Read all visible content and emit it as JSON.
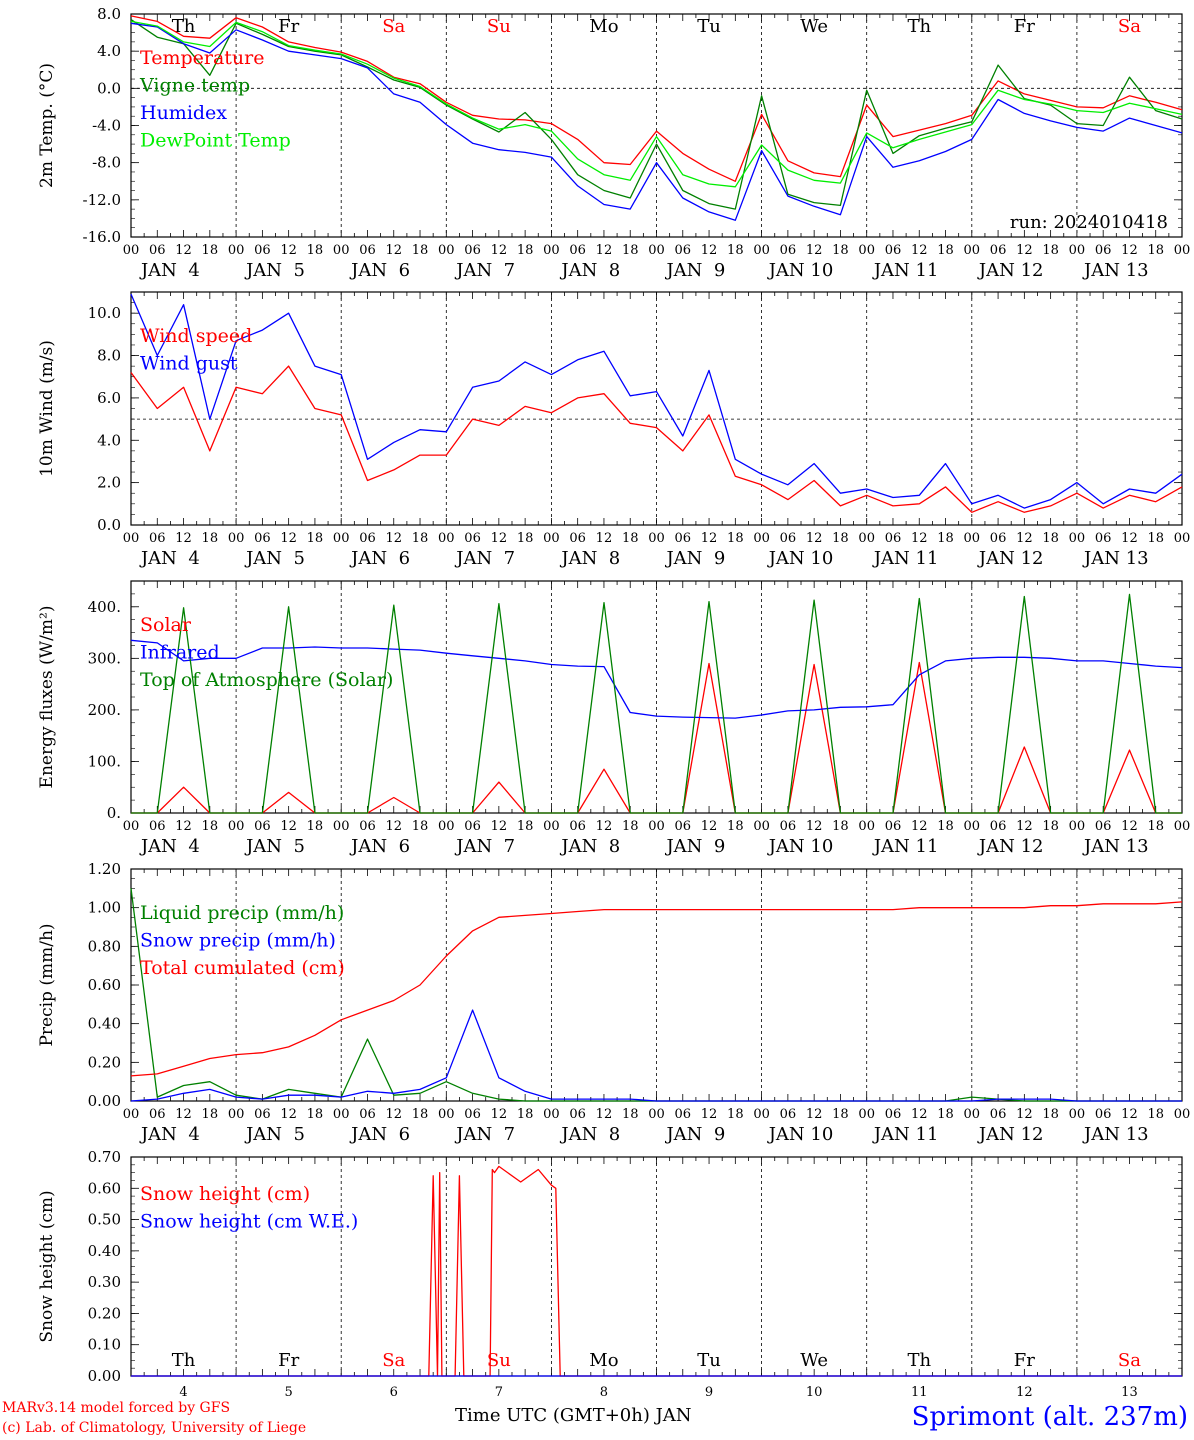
{
  "footer": {
    "model": "MARv3.14 model forced by GFS",
    "credit": "(c) Lab. of Climatology, University of Liege",
    "xlabel": "Time UTC (GMT+0h) JAN",
    "station": "Sprimont (alt. 237m)"
  },
  "colors": {
    "red": "#ff0000",
    "green": "#008000",
    "blue": "#0000ff",
    "lightgreen": "#00ee00"
  },
  "days": [
    "Th",
    "Fr",
    "Sa",
    "Su",
    "Mo",
    "Tu",
    "We",
    "Th",
    "Fr",
    "Sa"
  ],
  "weekend_days": [
    "Sa",
    "Su"
  ],
  "date_labels": [
    "JAN  4",
    "JAN  5",
    "JAN  6",
    "JAN  7",
    "JAN  8",
    "JAN  9",
    "JAN 10",
    "JAN 11",
    "JAN 12",
    "JAN 13"
  ],
  "day_numbers": [
    "4",
    "5",
    "6",
    "7",
    "8",
    "9",
    "10",
    "11",
    "12",
    "13"
  ],
  "hour_ticks": [
    "00",
    "06",
    "12",
    "18"
  ],
  "chart_data": [
    {
      "type": "line",
      "ylabel": "2m Temp. (°C)",
      "ylim": [
        -16,
        8
      ],
      "yticks": [
        "8.0",
        "4.0",
        "0.0",
        "-4.0",
        "-8.0",
        "-12.0",
        "-16.0"
      ],
      "ytick_values": [
        8,
        4,
        0,
        -4,
        -8,
        -12,
        -16
      ],
      "dashed_y": 0,
      "annotation": "run: 2024010418",
      "x_hours": [
        0,
        6,
        12,
        18,
        24,
        30,
        36,
        42,
        48,
        54,
        60,
        66,
        72,
        78,
        84,
        90,
        96,
        102,
        108,
        114,
        120,
        126,
        132,
        138,
        144,
        150,
        156,
        162,
        168,
        174,
        180,
        186,
        192,
        198,
        204,
        210,
        216,
        222,
        228,
        234,
        240
      ],
      "series": [
        {
          "name": "Temperature",
          "color": "red",
          "values": [
            7.8,
            7.2,
            5.6,
            5.4,
            7.6,
            6.6,
            5,
            4.4,
            3.9,
            2.9,
            1.2,
            0.5,
            -1.5,
            -2.9,
            -3.3,
            -3.4,
            -3.8,
            -5.5,
            -8,
            -8.2,
            -4.6,
            -7,
            -8.7,
            -10,
            -2.8,
            -7.8,
            -9.1,
            -9.5,
            -1.8,
            -5.2,
            -4.5,
            -3.8,
            -2.9,
            0.8,
            -0.6,
            -1.3,
            -2,
            -2.1,
            -0.8,
            -1.5,
            -2.3
          ]
        },
        {
          "name": "Vigne temp",
          "color": "green",
          "values": [
            7.4,
            5.5,
            4.8,
            1.4,
            7,
            5.8,
            4.5,
            4,
            3.6,
            2.3,
            0.9,
            0.1,
            -1.8,
            -3.3,
            -4.7,
            -2.6,
            -5.5,
            -9.3,
            -11,
            -11.8,
            -6,
            -11,
            -12.4,
            -13,
            -0.8,
            -11.4,
            -12.3,
            -12.6,
            -0.2,
            -7,
            -5.1,
            -4.3,
            -3.6,
            2.5,
            -1.1,
            -1.8,
            -3.8,
            -4,
            1.2,
            -2.4,
            -3.3
          ]
        },
        {
          "name": "Humidex",
          "color": "blue",
          "values": [
            7,
            6.6,
            4.8,
            3.8,
            6.3,
            5.2,
            4,
            3.6,
            3.2,
            2.2,
            -0.6,
            -1.5,
            -3.9,
            -5.9,
            -6.6,
            -6.9,
            -7.4,
            -10.5,
            -12.5,
            -13,
            -8,
            -11.8,
            -13.3,
            -14.2,
            -6.7,
            -11.6,
            -12.7,
            -13.6,
            -5.2,
            -8.5,
            -7.8,
            -6.8,
            -5.5,
            -1.2,
            -2.7,
            -3.5,
            -4.2,
            -4.6,
            -3.2,
            -4,
            -4.8
          ]
        },
        {
          "name": "DewPoint Temp",
          "color": "lightgreen",
          "values": [
            7.2,
            6.7,
            5,
            4.5,
            7.1,
            6.1,
            4.6,
            4.1,
            3.7,
            2.6,
            1.1,
            0.2,
            -1.7,
            -3.2,
            -4.4,
            -3.9,
            -4.6,
            -7.6,
            -9.3,
            -9.9,
            -5.2,
            -9.3,
            -10.3,
            -10.6,
            -6.1,
            -8.8,
            -9.9,
            -10.2,
            -4.8,
            -6.4,
            -5.5,
            -4.7,
            -3.9,
            -0.2,
            -1.2,
            -1.7,
            -2.4,
            -2.6,
            -1.6,
            -2.2,
            -2.8
          ]
        }
      ]
    },
    {
      "type": "line",
      "ylabel": "10m Wind (m/s)",
      "ylim": [
        0,
        11
      ],
      "yticks": [
        "10.0",
        "8.0",
        "6.0",
        "4.0",
        "2.0",
        "0.0"
      ],
      "ytick_values": [
        10,
        8,
        6,
        4,
        2,
        0
      ],
      "dashed_y": 5,
      "x_hours": [
        0,
        6,
        12,
        18,
        24,
        30,
        36,
        42,
        48,
        54,
        60,
        66,
        72,
        78,
        84,
        90,
        96,
        102,
        108,
        114,
        120,
        126,
        132,
        138,
        144,
        150,
        156,
        162,
        168,
        174,
        180,
        186,
        192,
        198,
        204,
        210,
        216,
        222,
        228,
        234,
        240
      ],
      "series": [
        {
          "name": "Wind speed",
          "color": "red",
          "values": [
            7.2,
            5.5,
            6.5,
            3.5,
            6.5,
            6.2,
            7.5,
            5.5,
            5.2,
            2.1,
            2.6,
            3.3,
            3.3,
            5,
            4.7,
            5.6,
            5.3,
            6,
            6.2,
            4.8,
            4.6,
            3.5,
            5.2,
            2.3,
            1.9,
            1.2,
            2.1,
            0.9,
            1.4,
            0.9,
            1,
            1.8,
            0.6,
            1.1,
            0.6,
            0.9,
            1.5,
            0.8,
            1.4,
            1.1,
            1.8
          ]
        },
        {
          "name": "Wind gust",
          "color": "blue",
          "values": [
            10.9,
            8,
            10.4,
            5,
            8.7,
            9.2,
            10,
            7.5,
            7.1,
            3.1,
            3.9,
            4.5,
            4.4,
            6.5,
            6.8,
            7.7,
            7.1,
            7.8,
            8.2,
            6.1,
            6.3,
            4.2,
            7.3,
            3.1,
            2.4,
            1.9,
            2.9,
            1.5,
            1.7,
            1.3,
            1.4,
            2.9,
            1,
            1.4,
            0.8,
            1.2,
            2,
            1,
            1.7,
            1.5,
            2.4
          ]
        }
      ]
    },
    {
      "type": "line",
      "ylabel": "Energy fluxes (W/m²)",
      "ylim": [
        0,
        450
      ],
      "yticks": [
        "400.",
        "300.",
        "200.",
        "100.",
        "0."
      ],
      "ytick_values": [
        400,
        300,
        200,
        100,
        0
      ],
      "x_hours": [
        0,
        6,
        12,
        18,
        24,
        30,
        36,
        42,
        48,
        54,
        60,
        66,
        72,
        78,
        84,
        90,
        96,
        102,
        108,
        114,
        120,
        126,
        132,
        138,
        144,
        150,
        156,
        162,
        168,
        174,
        180,
        186,
        192,
        198,
        204,
        210,
        216,
        222,
        228,
        234,
        240
      ],
      "series": [
        {
          "name": "Solar",
          "color": "red",
          "values": [
            0,
            0,
            50,
            0,
            0,
            0,
            40,
            0,
            0,
            0,
            30,
            0,
            0,
            0,
            60,
            0,
            0,
            0,
            85,
            0,
            0,
            0,
            290,
            0,
            0,
            0,
            288,
            0,
            0,
            0,
            292,
            0,
            0,
            0,
            128,
            0,
            0,
            0,
            122,
            0,
            0
          ]
        },
        {
          "name": "Infrared",
          "color": "blue",
          "values": [
            335,
            330,
            295,
            300,
            300,
            320,
            320,
            322,
            320,
            320,
            318,
            316,
            310,
            305,
            300,
            295,
            288,
            285,
            284,
            195,
            188,
            186,
            185,
            184,
            190,
            198,
            200,
            205,
            206,
            210,
            268,
            295,
            300,
            302,
            302,
            300,
            295,
            295,
            290,
            285,
            282
          ]
        },
        {
          "name": "Top of Atmosphere (Solar)",
          "color": "green",
          "values": [
            0,
            0,
            398,
            0,
            0,
            0,
            400,
            0,
            0,
            0,
            403,
            0,
            0,
            0,
            406,
            0,
            0,
            0,
            408,
            0,
            0,
            0,
            410,
            0,
            0,
            0,
            413,
            0,
            0,
            0,
            416,
            0,
            0,
            0,
            420,
            0,
            0,
            0,
            424,
            0,
            0
          ]
        }
      ]
    },
    {
      "type": "line",
      "ylabel": "Precip (mm/h)",
      "ylim": [
        0,
        1.2
      ],
      "yticks": [
        "1.20",
        "1.00",
        "0.80",
        "0.60",
        "0.40",
        "0.20",
        "0.00"
      ],
      "ytick_values": [
        1.2,
        1,
        0.8,
        0.6,
        0.4,
        0.2,
        0
      ],
      "x_hours": [
        0,
        6,
        12,
        18,
        24,
        30,
        36,
        42,
        48,
        54,
        60,
        66,
        72,
        78,
        84,
        90,
        96,
        102,
        108,
        114,
        120,
        126,
        132,
        138,
        144,
        150,
        156,
        162,
        168,
        174,
        180,
        186,
        192,
        198,
        204,
        210,
        216,
        222,
        228,
        234,
        240
      ],
      "series": [
        {
          "name": "Liquid precip (mm/h)",
          "color": "green",
          "values": [
            1.1,
            0.02,
            0.08,
            0.1,
            0.03,
            0.01,
            0.06,
            0.04,
            0.02,
            0.32,
            0.03,
            0.04,
            0.1,
            0.04,
            0.01,
            0,
            0,
            0,
            0,
            0,
            0,
            0,
            0,
            0,
            0,
            0,
            0,
            0,
            0,
            0,
            0,
            0,
            0.02,
            0.01,
            0,
            0,
            0,
            0,
            0,
            0,
            0
          ]
        },
        {
          "name": "Snow precip (mm/h)",
          "color": "blue",
          "values": [
            0,
            0.01,
            0.04,
            0.06,
            0.02,
            0.01,
            0.03,
            0.03,
            0.02,
            0.05,
            0.04,
            0.06,
            0.12,
            0.47,
            0.12,
            0.05,
            0.01,
            0.01,
            0.01,
            0.01,
            0,
            0,
            0,
            0,
            0,
            0,
            0,
            0,
            0,
            0,
            0,
            0,
            0,
            0.01,
            0.01,
            0.01,
            0,
            0,
            0,
            0,
            0
          ]
        },
        {
          "name": "Total cumulated (cm)",
          "color": "red",
          "values": [
            0.13,
            0.14,
            0.18,
            0.22,
            0.24,
            0.25,
            0.28,
            0.34,
            0.42,
            0.47,
            0.52,
            0.6,
            0.75,
            0.88,
            0.95,
            0.96,
            0.97,
            0.98,
            0.99,
            0.99,
            0.99,
            0.99,
            0.99,
            0.99,
            0.99,
            0.99,
            0.99,
            0.99,
            0.99,
            0.99,
            1,
            1,
            1,
            1,
            1,
            1.01,
            1.01,
            1.02,
            1.02,
            1.02,
            1.03
          ]
        }
      ]
    },
    {
      "type": "line",
      "ylabel": "Snow height (cm)",
      "ylim": [
        0,
        0.7
      ],
      "yticks": [
        "0.70",
        "0.60",
        "0.50",
        "0.40",
        "0.30",
        "0.20",
        "0.10",
        "0.00"
      ],
      "ytick_values": [
        0.7,
        0.6,
        0.5,
        0.4,
        0.3,
        0.2,
        0.1,
        0
      ],
      "x_hours": [
        0,
        68,
        69,
        70,
        70.5,
        71,
        72,
        74,
        75,
        76,
        82,
        82.5,
        83,
        84,
        89,
        93,
        96,
        97,
        98,
        240
      ],
      "series": [
        {
          "name": "Snow height (cm)",
          "color": "red",
          "values": [
            0,
            0,
            0.64,
            0,
            0.65,
            0,
            0,
            0,
            0.64,
            0,
            0,
            0.66,
            0.65,
            0.67,
            0.62,
            0.66,
            0.61,
            0.6,
            0,
            0
          ]
        },
        {
          "name": "Snow height (cm W.E.)",
          "color": "blue",
          "values": [
            0,
            0,
            0,
            0,
            0,
            0,
            0,
            0,
            0,
            0,
            0,
            0,
            0,
            0,
            0,
            0,
            0,
            0,
            0,
            0
          ]
        }
      ]
    }
  ]
}
